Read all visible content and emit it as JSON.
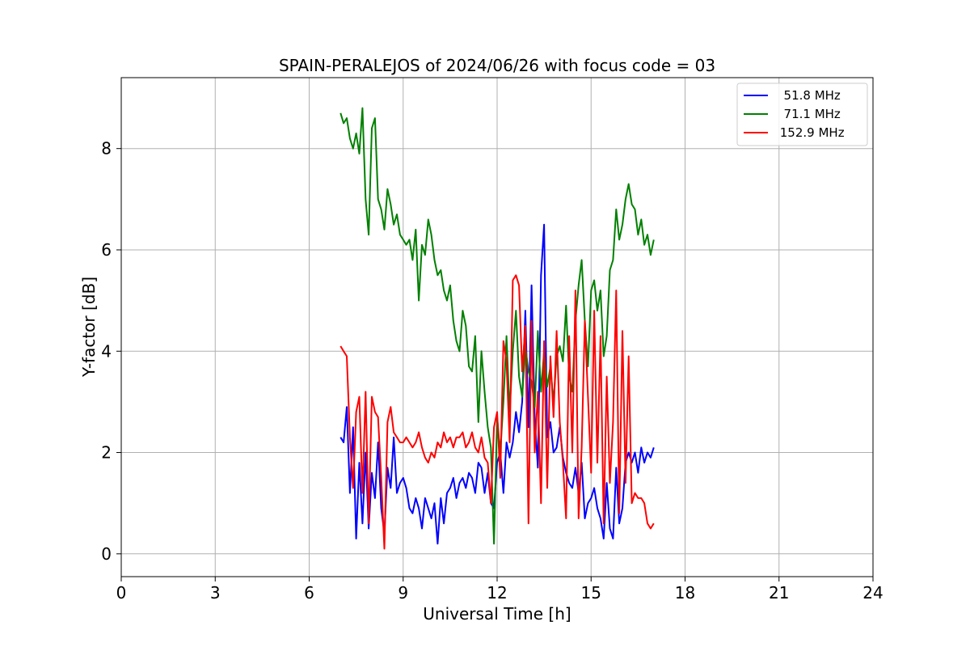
{
  "chart_data": {
    "type": "line",
    "title": "SPAIN-PERALEJOS of 2024/06/26 with focus code = 03",
    "xlabel": "Universal Time [h]",
    "ylabel": "Y-factor [dB]",
    "xlim": [
      0,
      24
    ],
    "ylim": [
      -0.45,
      9.4
    ],
    "xticks": [
      0,
      3,
      6,
      9,
      12,
      15,
      18,
      21,
      24
    ],
    "yticks": [
      0,
      2,
      4,
      6,
      8
    ],
    "grid": true,
    "legend_position": "top-right",
    "series": [
      {
        "name": "  51.8 MHz",
        "color": "#0000ff",
        "x": [
          7.0,
          7.1,
          7.2,
          7.3,
          7.4,
          7.5,
          7.6,
          7.7,
          7.8,
          7.9,
          8.0,
          8.1,
          8.2,
          8.3,
          8.4,
          8.5,
          8.6,
          8.7,
          8.8,
          8.9,
          9.0,
          9.1,
          9.2,
          9.3,
          9.4,
          9.5,
          9.6,
          9.7,
          9.8,
          9.9,
          10.0,
          10.1,
          10.2,
          10.3,
          10.4,
          10.5,
          10.6,
          10.7,
          10.8,
          10.9,
          11.0,
          11.1,
          11.2,
          11.3,
          11.4,
          11.5,
          11.6,
          11.7,
          11.8,
          11.9,
          12.0,
          12.1,
          12.2,
          12.3,
          12.4,
          12.5,
          12.6,
          12.7,
          12.8,
          12.9,
          13.0,
          13.1,
          13.2,
          13.3,
          13.4,
          13.5,
          13.6,
          13.7,
          13.8,
          13.9,
          14.0,
          14.1,
          14.2,
          14.3,
          14.4,
          14.5,
          14.6,
          14.7,
          14.8,
          14.9,
          15.0,
          15.1,
          15.2,
          15.3,
          15.4,
          15.5,
          15.6,
          15.7,
          15.8,
          15.9,
          16.0,
          16.1,
          16.2,
          16.3,
          16.4,
          16.5,
          16.6,
          16.7,
          16.8,
          16.9,
          17.0
        ],
        "y": [
          2.3,
          2.2,
          2.9,
          1.2,
          2.5,
          0.3,
          1.8,
          0.6,
          2.0,
          0.5,
          1.6,
          1.1,
          2.2,
          0.9,
          0.4,
          1.7,
          1.3,
          2.3,
          1.2,
          1.4,
          1.5,
          1.3,
          0.9,
          0.8,
          1.1,
          0.9,
          0.5,
          1.1,
          0.9,
          0.7,
          1.0,
          0.2,
          1.1,
          0.6,
          1.2,
          1.3,
          1.5,
          1.1,
          1.4,
          1.5,
          1.3,
          1.6,
          1.5,
          1.2,
          1.8,
          1.7,
          1.2,
          1.6,
          1.0,
          0.9,
          1.8,
          2.0,
          1.2,
          2.2,
          1.9,
          2.2,
          2.8,
          2.4,
          3.0,
          4.8,
          2.5,
          5.3,
          2.7,
          1.7,
          5.5,
          6.5,
          2.3,
          2.6,
          2.0,
          2.1,
          2.5,
          1.9,
          1.6,
          1.4,
          1.3,
          1.7,
          1.2,
          1.8,
          0.7,
          1.0,
          1.1,
          1.3,
          0.9,
          0.7,
          0.3,
          1.4,
          0.5,
          0.3,
          1.7,
          0.6,
          0.9,
          1.8,
          2.0,
          1.8,
          2.0,
          1.6,
          2.1,
          1.8,
          2.0,
          1.9,
          2.1
        ]
      },
      {
        "name": "  71.1 MHz",
        "color": "#008000",
        "x": [
          7.0,
          7.1,
          7.2,
          7.3,
          7.4,
          7.5,
          7.6,
          7.7,
          7.8,
          7.9,
          8.0,
          8.1,
          8.2,
          8.3,
          8.4,
          8.5,
          8.6,
          8.7,
          8.8,
          8.9,
          9.0,
          9.1,
          9.2,
          9.3,
          9.4,
          9.5,
          9.6,
          9.7,
          9.8,
          9.9,
          10.0,
          10.1,
          10.2,
          10.3,
          10.4,
          10.5,
          10.6,
          10.7,
          10.8,
          10.9,
          11.0,
          11.1,
          11.2,
          11.3,
          11.4,
          11.5,
          11.6,
          11.7,
          11.8,
          11.9,
          12.0,
          12.1,
          12.2,
          12.3,
          12.4,
          12.5,
          12.6,
          12.7,
          12.8,
          12.9,
          13.0,
          13.1,
          13.2,
          13.3,
          13.4,
          13.5,
          13.6,
          13.7,
          13.8,
          13.9,
          14.0,
          14.1,
          14.2,
          14.3,
          14.4,
          14.5,
          14.6,
          14.7,
          14.8,
          14.9,
          15.0,
          15.1,
          15.2,
          15.3,
          15.4,
          15.5,
          15.6,
          15.7,
          15.8,
          15.9,
          16.0,
          16.1,
          16.2,
          16.3,
          16.4,
          16.5,
          16.6,
          16.7,
          16.8,
          16.9,
          17.0
        ],
        "y": [
          8.7,
          8.5,
          8.6,
          8.2,
          8.0,
          8.3,
          7.9,
          8.8,
          7.0,
          6.3,
          8.4,
          8.6,
          7.0,
          6.8,
          6.4,
          7.2,
          6.9,
          6.5,
          6.7,
          6.3,
          6.2,
          6.1,
          6.2,
          5.8,
          6.4,
          5.0,
          6.1,
          5.9,
          6.6,
          6.3,
          5.8,
          5.5,
          5.6,
          5.2,
          5.0,
          5.3,
          4.6,
          4.2,
          4.0,
          4.8,
          4.5,
          3.7,
          3.6,
          4.3,
          2.6,
          4.0,
          3.2,
          2.5,
          2.1,
          0.2,
          2.7,
          2.0,
          3.0,
          4.3,
          2.8,
          4.0,
          4.8,
          3.5,
          3.1,
          4.1,
          3.6,
          3.4,
          2.9,
          4.4,
          3.2,
          4.0,
          3.3,
          3.7,
          3.0,
          3.9,
          4.1,
          3.8,
          4.9,
          3.5,
          3.2,
          4.6,
          5.3,
          5.8,
          4.6,
          3.7,
          5.2,
          5.4,
          4.8,
          5.2,
          3.9,
          4.3,
          5.6,
          5.8,
          6.8,
          6.2,
          6.5,
          7.0,
          7.3,
          6.9,
          6.8,
          6.3,
          6.6,
          6.1,
          6.3,
          5.9,
          6.2
        ]
      },
      {
        "name": " 152.9 MHz",
        "color": "#ff0000",
        "x": [
          7.0,
          7.1,
          7.2,
          7.3,
          7.4,
          7.5,
          7.6,
          7.7,
          7.8,
          7.9,
          8.0,
          8.1,
          8.2,
          8.3,
          8.4,
          8.5,
          8.6,
          8.7,
          8.8,
          8.9,
          9.0,
          9.1,
          9.2,
          9.3,
          9.4,
          9.5,
          9.6,
          9.7,
          9.8,
          9.9,
          10.0,
          10.1,
          10.2,
          10.3,
          10.4,
          10.5,
          10.6,
          10.7,
          10.8,
          10.9,
          11.0,
          11.1,
          11.2,
          11.3,
          11.4,
          11.5,
          11.6,
          11.7,
          11.8,
          11.9,
          12.0,
          12.1,
          12.2,
          12.3,
          12.4,
          12.5,
          12.6,
          12.7,
          12.8,
          12.9,
          13.0,
          13.1,
          13.2,
          13.3,
          13.4,
          13.5,
          13.6,
          13.7,
          13.8,
          13.9,
          14.0,
          14.1,
          14.2,
          14.3,
          14.4,
          14.5,
          14.6,
          14.7,
          14.8,
          14.9,
          15.0,
          15.1,
          15.2,
          15.3,
          15.4,
          15.5,
          15.6,
          15.7,
          15.8,
          15.9,
          16.0,
          16.1,
          16.2,
          16.3,
          16.4,
          16.5,
          16.6,
          16.7,
          16.8,
          16.9,
          17.0
        ],
        "y": [
          4.1,
          4.0,
          3.9,
          2.3,
          1.3,
          2.8,
          3.1,
          1.2,
          3.2,
          0.6,
          3.1,
          2.8,
          2.7,
          1.5,
          0.1,
          2.6,
          2.9,
          2.4,
          2.3,
          2.2,
          2.2,
          2.3,
          2.2,
          2.1,
          2.2,
          2.4,
          2.1,
          1.9,
          1.8,
          2.0,
          1.9,
          2.2,
          2.1,
          2.4,
          2.2,
          2.3,
          2.1,
          2.3,
          2.3,
          2.4,
          2.1,
          2.2,
          2.4,
          2.1,
          2.0,
          2.3,
          1.9,
          1.8,
          1.0,
          2.5,
          2.8,
          1.5,
          4.2,
          3.8,
          2.2,
          5.4,
          5.5,
          5.3,
          3.6,
          4.5,
          0.6,
          4.6,
          2.0,
          3.2,
          1.0,
          4.2,
          1.3,
          3.9,
          2.7,
          4.4,
          2.6,
          1.8,
          0.7,
          4.3,
          2.0,
          5.2,
          0.7,
          2.1,
          4.6,
          3.1,
          1.6,
          4.8,
          1.8,
          4.3,
          0.6,
          3.5,
          1.4,
          2.6,
          5.2,
          0.8,
          4.4,
          1.4,
          3.9,
          1.0,
          1.2,
          1.1,
          1.1,
          1.0,
          0.6,
          0.5,
          0.6
        ]
      }
    ]
  }
}
